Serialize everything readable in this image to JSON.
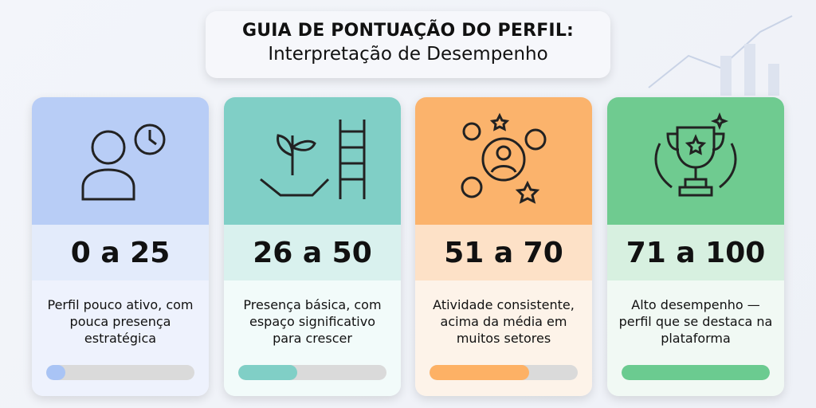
{
  "header": {
    "title": "GUIA DE PONTUAÇÃO DO PERFIL:",
    "subtitle": "Interpretação de Desempenho"
  },
  "cards": [
    {
      "range": "0 a 25",
      "description": "Perfil pouco ativo, com pouca presença estratégica",
      "progress": 0.13,
      "icon": "person-clock-icon",
      "colors": {
        "top": "#b8cdf6",
        "number": "#e3ebfb",
        "desc": "#eef2fd",
        "fill": "#a9c4f5"
      }
    },
    {
      "range": "26 a 50",
      "description": "Presença básica, com espaço significativo para crescer",
      "progress": 0.4,
      "icon": "plant-ladder-icon",
      "colors": {
        "top": "#80cfc6",
        "number": "#d9f1ee",
        "desc": "#f2fbfa",
        "fill": "#80cfc6"
      }
    },
    {
      "range": "51 a 70",
      "description": "Atividade consistente, acima da média em muitos setores",
      "progress": 0.67,
      "icon": "gears-person-icon",
      "colors": {
        "top": "#fbb36c",
        "number": "#fde1c7",
        "desc": "#fdf3e9",
        "fill": "#fdb165"
      }
    },
    {
      "range": "71 a 100",
      "description": "Alto desempenho — perfil que se destaca na plataforma",
      "progress": 1.0,
      "icon": "trophy-icon",
      "colors": {
        "top": "#6fcb90",
        "number": "#d7f0e0",
        "desc": "#f1f9f4",
        "fill": "#6bcb90"
      }
    }
  ]
}
